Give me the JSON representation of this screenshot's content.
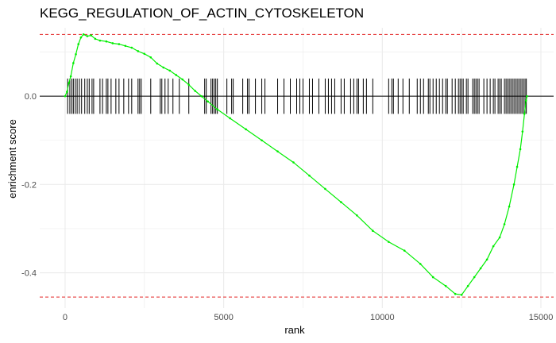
{
  "chart_data": {
    "type": "line",
    "title": "KEGG_REGULATION_OF_ACTIN_CYTOSKELETON",
    "xlabel": "rank",
    "ylabel": "enrichment score",
    "xlim": [
      -800,
      15400
    ],
    "ylim": [
      -0.48,
      0.155
    ],
    "x_ticks": [
      0,
      5000,
      10000,
      15000
    ],
    "x_tick_labels": [
      "0",
      "5000",
      "10000",
      "15000"
    ],
    "y_ticks": [
      0.0,
      -0.2,
      -0.4
    ],
    "y_tick_labels": [
      "0.0",
      "-0.2",
      "-0.4"
    ],
    "grid": true,
    "colors": {
      "curve": "#00ee00",
      "bounds": "#e32626",
      "zero_line": "#000000",
      "hits": "#000000",
      "grid": "#ebebeb"
    },
    "max_es": 0.14,
    "min_es": -0.455,
    "series": [
      {
        "values": [
          [
            0,
            0
          ],
          [
            60,
            0.01
          ],
          [
            120,
            0.03
          ],
          [
            180,
            0.045
          ],
          [
            260,
            0.075
          ],
          [
            340,
            0.095
          ],
          [
            420,
            0.118
          ],
          [
            500,
            0.133
          ],
          [
            580,
            0.14
          ],
          [
            700,
            0.136
          ],
          [
            820,
            0.138
          ],
          [
            950,
            0.13
          ],
          [
            1100,
            0.126
          ],
          [
            1300,
            0.124
          ],
          [
            1500,
            0.12
          ],
          [
            1700,
            0.118
          ],
          [
            1900,
            0.114
          ],
          [
            2100,
            0.11
          ],
          [
            2300,
            0.102
          ],
          [
            2500,
            0.096
          ],
          [
            2700,
            0.088
          ],
          [
            2900,
            0.074
          ],
          [
            3100,
            0.065
          ],
          [
            3300,
            0.058
          ],
          [
            3500,
            0.048
          ],
          [
            3700,
            0.038
          ],
          [
            3900,
            0.026
          ],
          [
            4100,
            0.012
          ],
          [
            4300,
            0.0
          ],
          [
            4500,
            -0.012
          ],
          [
            4800,
            -0.03
          ],
          [
            5200,
            -0.05
          ],
          [
            5700,
            -0.075
          ],
          [
            6200,
            -0.1
          ],
          [
            6700,
            -0.125
          ],
          [
            7200,
            -0.15
          ],
          [
            7700,
            -0.18
          ],
          [
            8200,
            -0.21
          ],
          [
            8700,
            -0.24
          ],
          [
            9200,
            -0.27
          ],
          [
            9700,
            -0.305
          ],
          [
            10200,
            -0.33
          ],
          [
            10700,
            -0.35
          ],
          [
            11200,
            -0.38
          ],
          [
            11600,
            -0.41
          ],
          [
            12000,
            -0.43
          ],
          [
            12300,
            -0.448
          ],
          [
            12500,
            -0.45
          ],
          [
            12700,
            -0.43
          ],
          [
            12900,
            -0.41
          ],
          [
            13100,
            -0.39
          ],
          [
            13300,
            -0.37
          ],
          [
            13500,
            -0.34
          ],
          [
            13700,
            -0.32
          ],
          [
            13850,
            -0.29
          ],
          [
            14000,
            -0.25
          ],
          [
            14150,
            -0.2
          ],
          [
            14250,
            -0.16
          ],
          [
            14350,
            -0.12
          ],
          [
            14420,
            -0.08
          ],
          [
            14480,
            -0.04
          ],
          [
            14530,
            -0.01
          ],
          [
            14560,
            0.0
          ]
        ]
      }
    ],
    "gene_hits": [
      80,
      150,
      210,
      260,
      320,
      380,
      450,
      520,
      620,
      700,
      760,
      850,
      900,
      1100,
      1180,
      1300,
      1350,
      1450,
      1600,
      1700,
      1850,
      2000,
      2100,
      2300,
      2350,
      2400,
      2700,
      3000,
      3050,
      3150,
      3250,
      3400,
      3600,
      3900,
      4400,
      4450,
      4600,
      4650,
      4700,
      4750,
      4800,
      5100,
      5250,
      5300,
      5600,
      5750,
      5800,
      6000,
      6200,
      6300,
      6700,
      6900,
      7100,
      7300,
      7400,
      7500,
      7700,
      7800,
      8000,
      8200,
      8300,
      8400,
      8500,
      8700,
      8800,
      9000,
      9100,
      9200,
      9250,
      9400,
      9500,
      9700,
      10200,
      10300,
      10350,
      10500,
      10650,
      10850,
      11100,
      11200,
      11300,
      11450,
      11500,
      11600,
      11700,
      11800,
      11900,
      12000,
      12050,
      12200,
      12300,
      12400,
      12450,
      12500,
      12550,
      12650,
      12700,
      12850,
      12900,
      12950,
      13000,
      13050,
      13200,
      13300,
      13400,
      13500,
      13550,
      13650,
      13700,
      13750,
      13850,
      13900,
      13950,
      14000,
      14050,
      14100,
      14150,
      14200,
      14250,
      14300,
      14350,
      14400,
      14450,
      14500,
      14540
    ]
  }
}
